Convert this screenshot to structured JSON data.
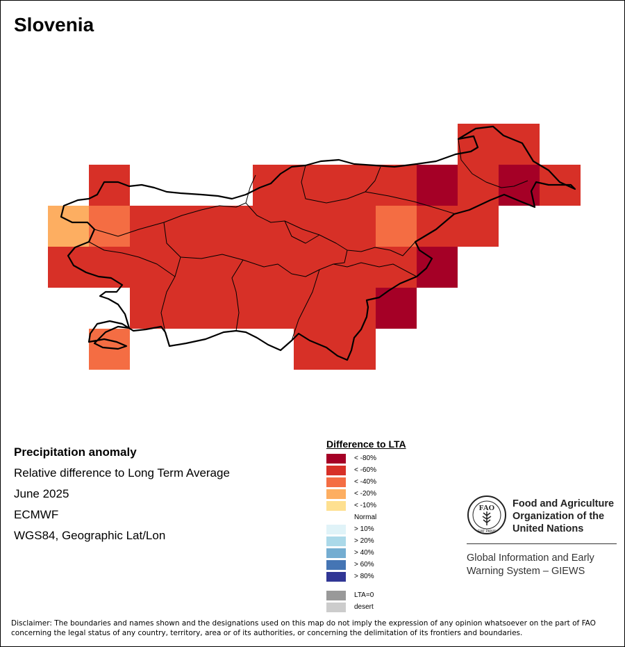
{
  "title": "Slovenia",
  "info": {
    "heading": "Precipitation anomaly",
    "subtitle": "Relative difference to Long Term Average",
    "period": "June 2025",
    "source": "ECMWF",
    "projection": "WGS84, Geographic Lat/Lon"
  },
  "legend": {
    "title": "Difference to LTA",
    "items": [
      {
        "label": "< -80%",
        "color": "#a50026"
      },
      {
        "label": "< -60%",
        "color": "#d73027"
      },
      {
        "label": "< -40%",
        "color": "#f46d43"
      },
      {
        "label": "< -20%",
        "color": "#fdae61"
      },
      {
        "label": "< -10%",
        "color": "#fee090"
      },
      {
        "label": "Normal",
        "color": "#ffffff"
      },
      {
        "label": "> 10%",
        "color": "#e0f3f8"
      },
      {
        "label": "> 20%",
        "color": "#abd9e9"
      },
      {
        "label": "> 40%",
        "color": "#74add1"
      },
      {
        "label": "> 60%",
        "color": "#4575b4"
      },
      {
        "label": "> 80%",
        "color": "#313695"
      },
      {
        "label": "",
        "color": "#ffffff"
      },
      {
        "label": "LTA=0",
        "color": "#999999"
      },
      {
        "label": "desert",
        "color": "#cccccc"
      }
    ]
  },
  "logo": {
    "org_name": "Food and Agriculture Organization of the United Nations",
    "emblem_letters": "FAO",
    "emblem_motto": "FIAT PANIS",
    "system_name": "Global Information and Early Warning System – GIEWS"
  },
  "disclaimer": "Disclaimer: The boundaries and names shown and the designations used on this map do not imply the expression of any opinion whatsoever on the part of FAO concerning the legal status of any country, territory, area or of its authorities, or concerning the delimitation of its frontiers and boundaries.",
  "grid_cells": [
    {
      "row": 0,
      "col": 10,
      "class": "< -60%"
    },
    {
      "row": 0,
      "col": 11,
      "class": "< -60%"
    },
    {
      "row": 1,
      "col": 1,
      "class": "< -60%"
    },
    {
      "row": 1,
      "col": 5,
      "class": "< -60%"
    },
    {
      "row": 1,
      "col": 6,
      "class": "< -60%"
    },
    {
      "row": 1,
      "col": 7,
      "class": "< -60%"
    },
    {
      "row": 1,
      "col": 8,
      "class": "< -60%"
    },
    {
      "row": 1,
      "col": 9,
      "class": "< -80%"
    },
    {
      "row": 1,
      "col": 10,
      "class": "< -60%"
    },
    {
      "row": 1,
      "col": 11,
      "class": "< -80%"
    },
    {
      "row": 1,
      "col": 12,
      "class": "< -60%"
    },
    {
      "row": 2,
      "col": 0,
      "class": "< -20%"
    },
    {
      "row": 2,
      "col": 1,
      "class": "< -40%"
    },
    {
      "row": 2,
      "col": 2,
      "class": "< -60%"
    },
    {
      "row": 2,
      "col": 3,
      "class": "< -60%"
    },
    {
      "row": 2,
      "col": 4,
      "class": "< -60%"
    },
    {
      "row": 2,
      "col": 5,
      "class": "< -60%"
    },
    {
      "row": 2,
      "col": 6,
      "class": "< -60%"
    },
    {
      "row": 2,
      "col": 7,
      "class": "< -60%"
    },
    {
      "row": 2,
      "col": 8,
      "class": "< -40%"
    },
    {
      "row": 2,
      "col": 9,
      "class": "< -60%"
    },
    {
      "row": 2,
      "col": 10,
      "class": "< -60%"
    },
    {
      "row": 3,
      "col": 0,
      "class": "< -60%"
    },
    {
      "row": 3,
      "col": 1,
      "class": "< -60%"
    },
    {
      "row": 3,
      "col": 2,
      "class": "< -60%"
    },
    {
      "row": 3,
      "col": 3,
      "class": "< -60%"
    },
    {
      "row": 3,
      "col": 4,
      "class": "< -60%"
    },
    {
      "row": 3,
      "col": 5,
      "class": "< -60%"
    },
    {
      "row": 3,
      "col": 6,
      "class": "< -60%"
    },
    {
      "row": 3,
      "col": 7,
      "class": "< -60%"
    },
    {
      "row": 3,
      "col": 8,
      "class": "< -60%"
    },
    {
      "row": 3,
      "col": 9,
      "class": "< -80%"
    },
    {
      "row": 4,
      "col": 2,
      "class": "< -60%"
    },
    {
      "row": 4,
      "col": 3,
      "class": "< -60%"
    },
    {
      "row": 4,
      "col": 4,
      "class": "< -60%"
    },
    {
      "row": 4,
      "col": 5,
      "class": "< -60%"
    },
    {
      "row": 4,
      "col": 6,
      "class": "< -60%"
    },
    {
      "row": 4,
      "col": 7,
      "class": "< -60%"
    },
    {
      "row": 4,
      "col": 8,
      "class": "< -80%"
    },
    {
      "row": 5,
      "col": 1,
      "class": "< -40%"
    },
    {
      "row": 5,
      "col": 6,
      "class": "< -60%"
    },
    {
      "row": 5,
      "col": 7,
      "class": "< -60%"
    }
  ]
}
